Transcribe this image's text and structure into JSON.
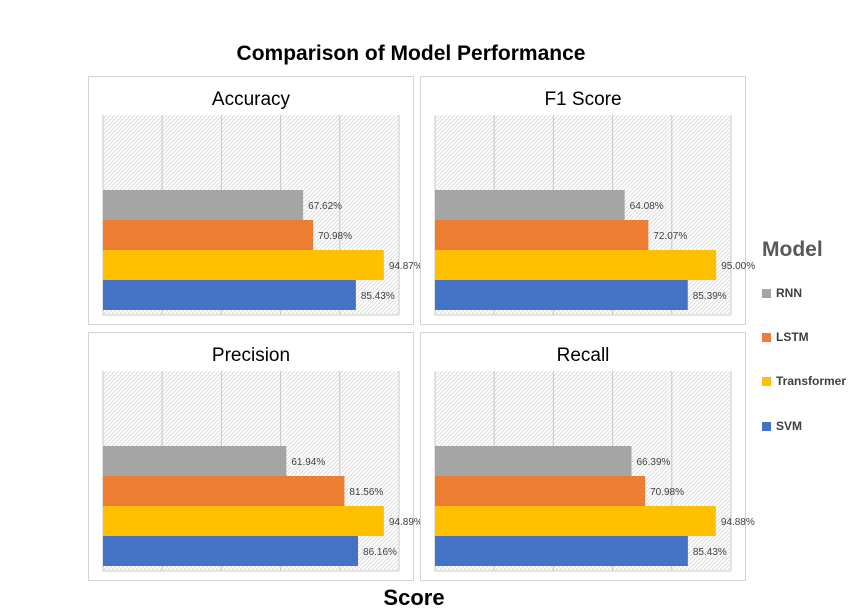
{
  "title": "Comparison of Model Performance",
  "axis_title": "Score",
  "legend": {
    "title": "Model",
    "items": [
      {
        "label": "RNN",
        "color": "#a5a5a5"
      },
      {
        "label": "LSTM",
        "color": "#ed7d31"
      },
      {
        "label": "Transformer",
        "color": "#ffc000"
      },
      {
        "label": "SVM",
        "color": "#4472c4"
      }
    ]
  },
  "chart_data": [
    {
      "type": "bar",
      "orientation": "horizontal",
      "title": "Accuracy",
      "xlim": [
        0,
        100
      ],
      "grid": true,
      "series": [
        {
          "name": "RNN",
          "value": 67.62,
          "label": "67.62%"
        },
        {
          "name": "LSTM",
          "value": 70.98,
          "label": "70.98%"
        },
        {
          "name": "Transformer",
          "value": 94.87,
          "label": "94.87%"
        },
        {
          "name": "SVM",
          "value": 85.43,
          "label": "85.43%"
        }
      ]
    },
    {
      "type": "bar",
      "orientation": "horizontal",
      "title": "F1 Score",
      "xlim": [
        0,
        100
      ],
      "grid": true,
      "series": [
        {
          "name": "RNN",
          "value": 64.08,
          "label": "64.08%"
        },
        {
          "name": "LSTM",
          "value": 72.07,
          "label": "72.07%"
        },
        {
          "name": "Transformer",
          "value": 95.0,
          "label": "95.00%"
        },
        {
          "name": "SVM",
          "value": 85.39,
          "label": "85.39%"
        }
      ]
    },
    {
      "type": "bar",
      "orientation": "horizontal",
      "title": "Precision",
      "xlim": [
        0,
        100
      ],
      "grid": true,
      "series": [
        {
          "name": "RNN",
          "value": 61.94,
          "label": "61.94%"
        },
        {
          "name": "LSTM",
          "value": 81.56,
          "label": "81.56%"
        },
        {
          "name": "Transformer",
          "value": 94.89,
          "label": "94.89%"
        },
        {
          "name": "SVM",
          "value": 86.16,
          "label": "86.16%"
        }
      ]
    },
    {
      "type": "bar",
      "orientation": "horizontal",
      "title": "Recall",
      "xlim": [
        0,
        100
      ],
      "grid": true,
      "series": [
        {
          "name": "RNN",
          "value": 66.39,
          "label": "66.39%"
        },
        {
          "name": "LSTM",
          "value": 70.98,
          "label": "70.98%"
        },
        {
          "name": "Transformer",
          "value": 94.88,
          "label": "94.88%"
        },
        {
          "name": "SVM",
          "value": 85.43,
          "label": "85.43%"
        }
      ]
    }
  ]
}
